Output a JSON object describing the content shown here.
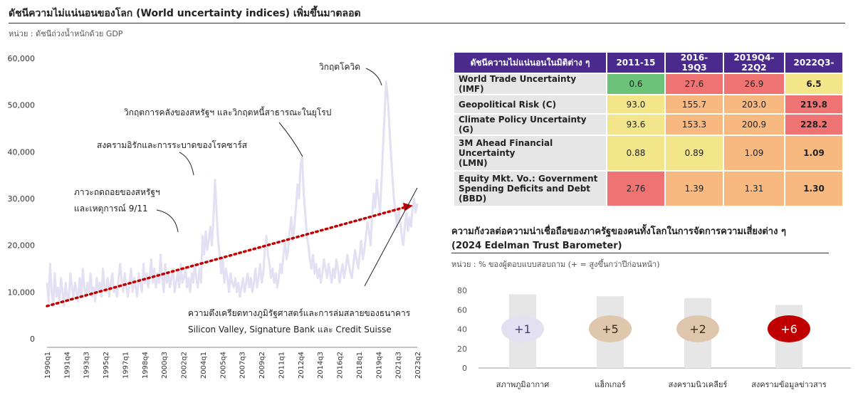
{
  "header": {
    "title": "ดัชนีความไม่แน่นอนของโลก  (World uncertainty indices) เพิ่มขึ้นมาตลอด",
    "unit": "หน่วย : ดัชนีถ่วงน้ำหนักด้วย GDP"
  },
  "colors": {
    "line": "#e2e0f2",
    "trend": "#c00000",
    "header_bg": "#4a2a8c",
    "green": "#6dc27a",
    "yellow": "#f3e58a",
    "orange": "#f8b981",
    "red": "#f07373",
    "bar": "#e6e6e6"
  },
  "chart_data": [
    {
      "type": "line",
      "title": "",
      "ylim": [
        0,
        60000
      ],
      "yticks": [
        "0",
        "10,000",
        "20,000",
        "30,000",
        "40,000",
        "50,000",
        "60,000"
      ],
      "xticks": [
        "1990q1",
        "1991q4",
        "1993q3",
        "1995q2",
        "1997q1",
        "1998q4",
        "2000q3",
        "2002q2",
        "2004q1",
        "2005q4",
        "2007q3",
        "2009q2",
        "2011q1",
        "2012q4",
        "2014q3",
        "2016q2",
        "2018q1",
        "2019q4",
        "2021q3",
        "2023q2"
      ],
      "series": [
        {
          "values": [
            12000,
            8000,
            16000,
            10000,
            7000,
            14000,
            9000,
            11000,
            8000,
            13000,
            10000,
            7000,
            12000,
            9000,
            8000,
            14000,
            11000,
            9000,
            12000,
            10000,
            8000,
            13000,
            9000,
            15000,
            11000,
            9000,
            12000,
            10000,
            14000,
            9000,
            11000,
            8000,
            13000,
            10000,
            12000,
            9000,
            15000,
            11000,
            10000,
            13000,
            9000,
            12000,
            14000,
            10000,
            11000,
            9000,
            13000,
            16000,
            12000,
            10000,
            14000,
            11000,
            9000,
            12000,
            15000,
            10000,
            13000,
            11000,
            9000,
            14000,
            12000,
            10000,
            16000,
            12000,
            14000,
            11000,
            13000,
            17000,
            12000,
            15000,
            11000,
            14000,
            12000,
            18000,
            13000,
            10000,
            16000,
            12000,
            14000,
            11000,
            13000,
            15000,
            10000,
            12000,
            14000,
            11000,
            16000,
            12000,
            13000,
            15000,
            11000,
            13000,
            10000,
            14000,
            12000,
            16000,
            13000,
            11000,
            15000,
            12000,
            22000,
            18000,
            23000,
            19000,
            21000,
            24000,
            20000,
            26000,
            34000,
            27000,
            21000,
            18000,
            14000,
            17000,
            12000,
            15000,
            13000,
            10000,
            14000,
            12000,
            11000,
            13000,
            10000,
            12000,
            9000,
            11000,
            13000,
            10000,
            12000,
            14000,
            11000,
            13000,
            10000,
            12000,
            15000,
            11000,
            13000,
            16000,
            12000,
            14000,
            19000,
            22000,
            18000,
            16000,
            13000,
            15000,
            12000,
            14000,
            11000,
            13000,
            16000,
            14000,
            18000,
            21000,
            17000,
            19000,
            23000,
            26000,
            21000,
            24000,
            28000,
            33000,
            30000,
            37000,
            39000,
            31000,
            27000,
            22000,
            20000,
            17000,
            15000,
            18000,
            14000,
            16000,
            13000,
            15000,
            12000,
            14000,
            17000,
            15000,
            13000,
            16000,
            14000,
            12000,
            15000,
            13000,
            17000,
            15000,
            12000,
            14000,
            16000,
            13000,
            15000,
            18000,
            16000,
            14000,
            13000,
            16000,
            19000,
            17000,
            15000,
            18000,
            21000,
            17000,
            19000,
            22000,
            25000,
            23000,
            20000,
            26000,
            31000,
            28000,
            34000,
            30000,
            27000,
            33000,
            41000,
            48000,
            55000,
            52000,
            46000,
            40000,
            35000,
            30000,
            27000,
            24000,
            28000,
            25000,
            22000,
            20000,
            24000,
            27000,
            23000,
            26000,
            24000,
            28000,
            30000,
            27000,
            29000
          ]
        }
      ],
      "trend": {
        "start": 7000,
        "end": 28500
      },
      "annotations": [
        {
          "text": "ภาวะถดถอยของสหรัฐฯ"
        },
        {
          "text": "และเหตุการณ์ 9/11"
        },
        {
          "text": "สงครามอิรักและการระบาดของโรคซาร์ส"
        },
        {
          "text": "วิกฤตการคลังของสหรัฐฯ และวิกฤตหนี้สาธารณะในยุโรป"
        },
        {
          "text": "วิกฤตโควิด"
        },
        {
          "text": "ความตึงเครียดทางภูมิรัฐศาสตร์และการล่มสลายของธนาคาร"
        },
        {
          "text": "Silicon Valley, Signature Bank และ Credit Suisse"
        }
      ]
    },
    {
      "type": "table",
      "columns": [
        "ดัชนีความไม่แน่นอนในมิติต่าง ๆ",
        "2011-15",
        "2016-19Q3",
        "2019Q4-22Q2",
        "2022Q3-"
      ],
      "rows": [
        {
          "label": [
            "World Trade Uncertainty (IMF)"
          ],
          "values": [
            "0.6",
            "27.6",
            "26.9",
            "6.5"
          ],
          "colors": [
            "green",
            "red",
            "red",
            "yellow"
          ]
        },
        {
          "label": [
            "Geopolitical Risk (C)"
          ],
          "values": [
            "93.0",
            "155.7",
            "203.0",
            "219.8"
          ],
          "colors": [
            "yellow",
            "orange",
            "orange",
            "red"
          ]
        },
        {
          "label": [
            "Climate Policy Uncertainty (G)"
          ],
          "values": [
            "93.6",
            "153.3",
            "200.9",
            "228.2"
          ],
          "colors": [
            "yellow",
            "orange",
            "orange",
            "red"
          ]
        },
        {
          "label": [
            "3M Ahead Financial Uncertainty",
            "(LMN)"
          ],
          "values": [
            "0.88",
            "0.89",
            "1.09",
            "1.09"
          ],
          "colors": [
            "yellow",
            "yellow",
            "orange",
            "orange"
          ]
        },
        {
          "label": [
            "Equity Mkt. Vo.: Government",
            "Spending Deficits and Debt (BBD)"
          ],
          "values": [
            "2.76",
            "1.39",
            "1.31",
            "1.30"
          ],
          "colors": [
            "red",
            "orange",
            "orange",
            "orange"
          ]
        }
      ]
    },
    {
      "type": "bar",
      "title": "ความกังวลต่อความน่าเชื่อถือของภาครัฐของคนทั้งโลกในการจัดการความเสี่ยงต่าง ๆ",
      "subtitle": "(2024 Edelman Trust Barometer)",
      "unit": "หน่วย : % ของผู้ตอบแบบสอบถาม (+ = สูงขึ้นกว่าปีก่อนหน้า)",
      "ylim": [
        0,
        80
      ],
      "yticks": [
        "0",
        "20",
        "40",
        "60",
        "80"
      ],
      "categories": [
        "สภาพภูมิอากาศ",
        "แฮ็กเกอร์",
        "สงครามนิวเคลียร์",
        "สงครามข้อมูลข่าวสาร"
      ],
      "values": [
        76,
        74,
        72,
        65
      ],
      "changes": [
        "+1",
        "+5",
        "+2",
        "+6"
      ],
      "badge_colors": [
        "#e3e1f1",
        "#dfc7ad",
        "#dfc7ad",
        "#c00000"
      ],
      "badge_text_colors": [
        "#4a3a7a",
        "#3a2a1a",
        "#3a2a1a",
        "#ffffff"
      ]
    }
  ]
}
